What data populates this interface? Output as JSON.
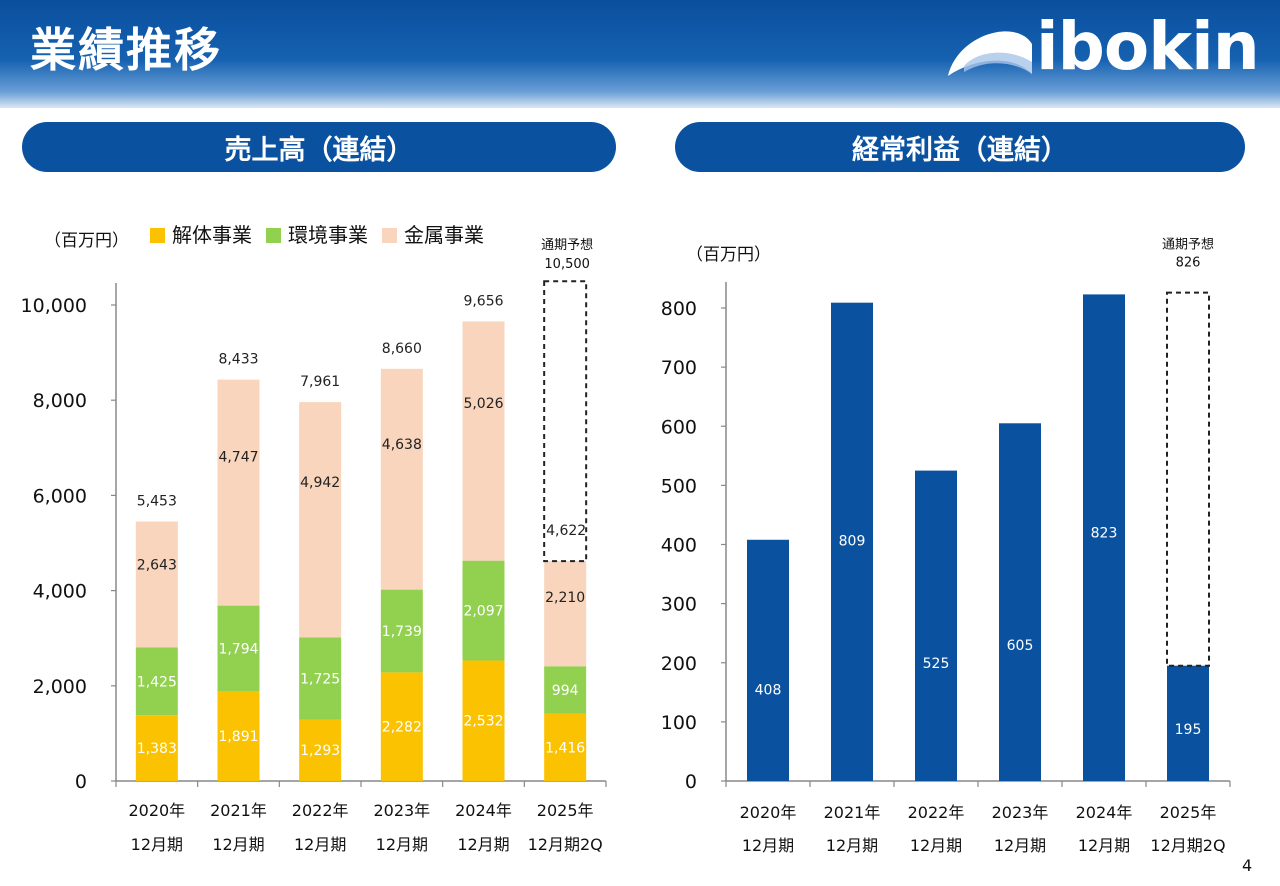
{
  "header": {
    "title": "業績推移",
    "logo_text": "ibokin"
  },
  "colors": {
    "header_blue": "#0a4f9e",
    "kaitai": "#fbc202",
    "kankyo": "#92d050",
    "kinzoku": "#f8d5bc",
    "profit_bar": "#0a52a0"
  },
  "page_number": "4",
  "chart_data": [
    {
      "type": "bar",
      "stacked": true,
      "title": "売上高（連結）",
      "unit": "（百万円）",
      "categories": [
        [
          "2020年",
          "12月期"
        ],
        [
          "2021年",
          "12月期"
        ],
        [
          "2022年",
          "12月期"
        ],
        [
          "2023年",
          "12月期"
        ],
        [
          "2024年",
          "12月期"
        ],
        [
          "2025年",
          "12月期2Q"
        ]
      ],
      "series": [
        {
          "name": "解体事業",
          "color": "#fbc202",
          "values": [
            1383,
            1891,
            1293,
            2282,
            2532,
            1416
          ],
          "labels": [
            "1,383",
            "1,891",
            "1,293",
            "2,282",
            "2,532",
            "1,416"
          ]
        },
        {
          "name": "環境事業",
          "color": "#92d050",
          "values": [
            1425,
            1794,
            1725,
            1739,
            2097,
            994
          ],
          "labels": [
            "1,425",
            "1,794",
            "1,725",
            "1,739",
            "2,097",
            "994"
          ]
        },
        {
          "name": "金属事業",
          "color": "#f8d5bc",
          "values": [
            2643,
            4747,
            4942,
            4638,
            5026,
            2210
          ],
          "labels": [
            "2,643",
            "4,747",
            "4,942",
            "4,638",
            "5,026",
            "2,210"
          ]
        }
      ],
      "totals": [
        5453,
        8433,
        7961,
        8660,
        9656,
        null
      ],
      "total_labels": [
        "5,453",
        "8,433",
        "7,961",
        "8,660",
        "9,656",
        ""
      ],
      "forecast": {
        "value": 10500,
        "label_line1": "通期予想",
        "label_line2": "10,500",
        "remaining_label": "4,622"
      },
      "ylim": [
        0,
        10000
      ],
      "yticks": [
        0,
        2000,
        4000,
        6000,
        8000,
        10000
      ],
      "ytick_labels": [
        "0",
        "2,000",
        "4,000",
        "6,000",
        "8,000",
        "10,000"
      ],
      "legend_position": "top"
    },
    {
      "type": "bar",
      "title": "経常利益（連結）",
      "unit": "（百万円）",
      "categories": [
        [
          "2020年",
          "12月期"
        ],
        [
          "2021年",
          "12月期"
        ],
        [
          "2022年",
          "12月期"
        ],
        [
          "2023年",
          "12月期"
        ],
        [
          "2024年",
          "12月期"
        ],
        [
          "2025年",
          "12月期2Q"
        ]
      ],
      "values": [
        408,
        809,
        525,
        605,
        823,
        195
      ],
      "labels": [
        "408",
        "809",
        "525",
        "605",
        "823",
        "195"
      ],
      "color": "#0a52a0",
      "forecast": {
        "value": 826,
        "label_line1": "通期予想",
        "label_line2": "826"
      },
      "ylim": [
        0,
        800
      ],
      "yticks": [
        0,
        100,
        200,
        300,
        400,
        500,
        600,
        700,
        800
      ],
      "ytick_labels": [
        "0",
        "100",
        "200",
        "300",
        "400",
        "500",
        "600",
        "700",
        "800"
      ]
    }
  ]
}
